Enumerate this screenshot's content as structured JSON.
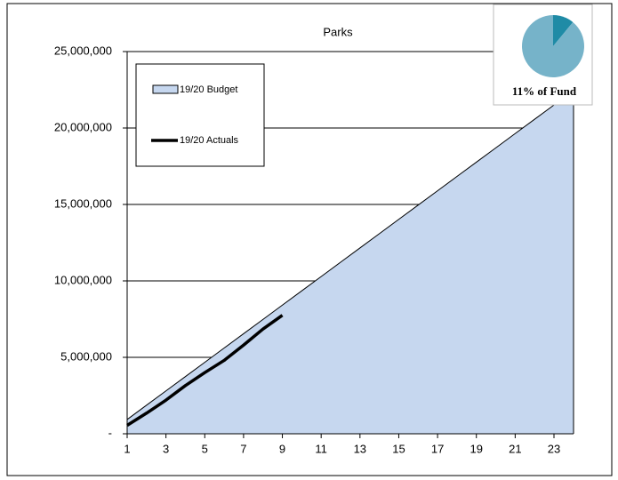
{
  "chart_data": {
    "type": "area",
    "title": "Parks",
    "x": [
      1,
      2,
      3,
      4,
      5,
      6,
      7,
      8,
      9,
      10,
      11,
      12,
      13,
      14,
      15,
      16,
      17,
      18,
      19,
      20,
      21,
      22,
      23,
      24
    ],
    "series": [
      {
        "name": "19/20 Budget",
        "color": "#c6d7ef",
        "values": [
          935000,
          1870000,
          2805000,
          3740000,
          4675000,
          5610000,
          6545000,
          7480000,
          8415000,
          9350000,
          10285000,
          11220000,
          12155000,
          13090000,
          14025000,
          14960000,
          15895000,
          16830000,
          17765000,
          18700000,
          19635000,
          20570000,
          21505000,
          22440000
        ]
      },
      {
        "name": "19/20 Actuals",
        "color": "#000000",
        "values": [
          550000,
          1350000,
          2200000,
          3150000,
          4000000,
          4800000,
          5800000,
          6850000,
          7750000,
          null,
          null,
          null,
          null,
          null,
          null,
          null,
          null,
          null,
          null,
          null,
          null,
          null,
          null,
          null
        ]
      }
    ],
    "xlim": [
      1,
      24
    ],
    "xticks": [
      1,
      3,
      5,
      7,
      9,
      11,
      13,
      15,
      17,
      19,
      21,
      23
    ],
    "ylim": [
      0,
      25000000
    ],
    "yticks": [
      {
        "value": 0,
        "label": "-"
      },
      {
        "value": 5000000,
        "label": "5,000,000"
      },
      {
        "value": 10000000,
        "label": "10,000,000"
      },
      {
        "value": 15000000,
        "label": "15,000,000"
      },
      {
        "value": 20000000,
        "label": "20,000,000"
      },
      {
        "value": 25000000,
        "label": "25,000,000"
      }
    ],
    "grid": true,
    "inset": {
      "type": "pie",
      "values": [
        11,
        89
      ],
      "colors": [
        "#1f8ba6",
        "#76b3c9"
      ],
      "label": "11% of Fund"
    }
  }
}
